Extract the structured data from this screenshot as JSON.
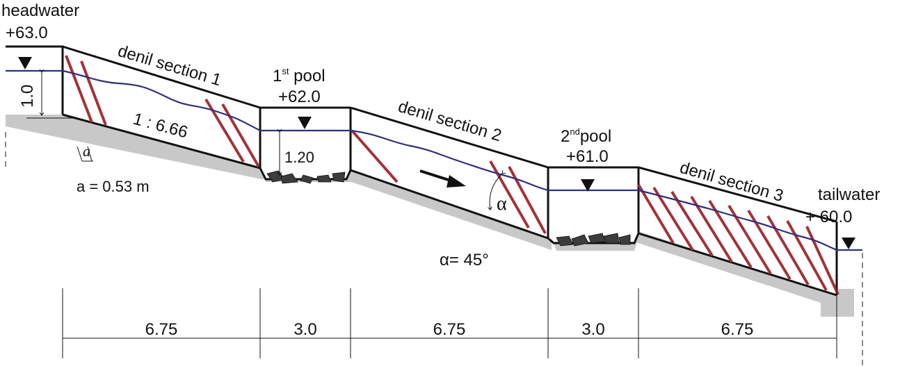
{
  "levels": {
    "headwater": {
      "name": "headwater",
      "elevation": "+63.0"
    },
    "pool1": {
      "name_sup": "st",
      "name_num": "1",
      "name_word": " pool",
      "elevation": "+62.0"
    },
    "pool2": {
      "name_sup": "nd",
      "name_num": "2",
      "name_word": "pool",
      "elevation": "+61.0"
    },
    "tailwater": {
      "name": "tailwater",
      "elevation": "+ 60.0"
    }
  },
  "sections": [
    "denil section 1",
    "denil section 2",
    "denil section 3"
  ],
  "depths": {
    "headwater": "1.0",
    "pool1": "1.20"
  },
  "slope": "1 : 6.66",
  "baffle_spacing": {
    "symbol": "a",
    "value": "a = 0.53 m"
  },
  "angle": {
    "symbol": "α",
    "value": "α= 45°"
  },
  "lengths": [
    "6.75",
    "3.0",
    "6.75",
    "3.0",
    "6.75"
  ],
  "colors": {
    "baffle": "#a33238",
    "water": "#2f2f7e",
    "ground": "#c8c8c8"
  }
}
